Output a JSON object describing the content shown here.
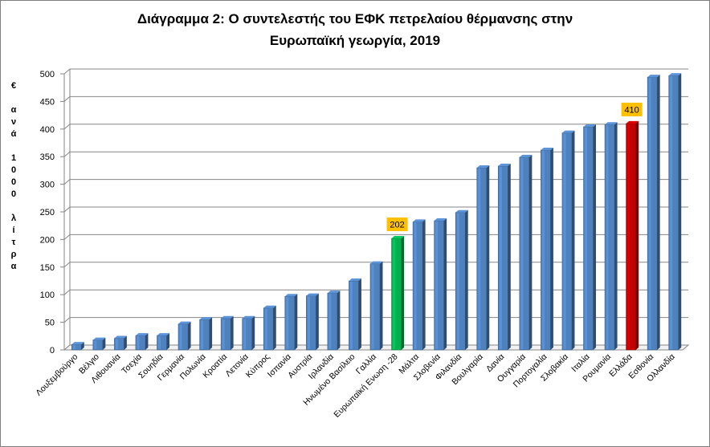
{
  "chart_data": {
    "type": "bar",
    "title": "Διάγραμμα 2: Ο συντελεστής του ΕΦΚ πετρελαίου θέρμανσης στην Ευρωπαϊκή γεωργία, 2019",
    "title_lines": [
      "Διάγραμμα 2: Ο συντελεστής του ΕΦΚ πετρελαίου θέρμανσης στην",
      "Ευρωπαϊκή γεωργία, 2019"
    ],
    "ylabel": "€ ανά 1000 λίτρα",
    "ylabel_lines": [
      "€",
      "",
      "α",
      "ν",
      "ά",
      "",
      "1",
      "0",
      "0",
      "0",
      "",
      "λ",
      "ί",
      "τ",
      "ρ",
      "α"
    ],
    "xlabel": "",
    "ylim": [
      0,
      500
    ],
    "yticks": [
      0,
      50,
      100,
      150,
      200,
      250,
      300,
      350,
      400,
      450,
      500
    ],
    "grid": true,
    "legend": "none",
    "categories": [
      "Λουξεμβούργο",
      "Βέλγιο",
      "Λιθουανία",
      "Τσεχία",
      "Σουηδία",
      "Γερμανία",
      "Πολωνία",
      "Κροατία",
      "Λετονία",
      "Κύπρος",
      "Ισπανία",
      "Αυστρία",
      "Ιρλανδία",
      "Ηνωμένο Βασίλειο",
      "Γαλλία",
      "Ευρωπαϊκή Ενωση -28",
      "Μάλτα",
      "Σλοβενία",
      "Φιλανδία",
      "Βουλγαρία",
      "Δανία",
      "Ουγγαρία",
      "Πορτογαλία",
      "Σλοβακία",
      "Ιταλία",
      "Ρουμανία",
      "Ελλάδα",
      "Εσθονία",
      "Ολλανδία"
    ],
    "values": [
      10,
      18,
      21,
      26,
      26,
      47,
      55,
      57,
      57,
      76,
      97,
      98,
      103,
      125,
      156,
      202,
      232,
      234,
      249,
      330,
      333,
      349,
      362,
      393,
      404,
      408,
      410,
      494,
      497
    ],
    "highlight": [
      {
        "category": "Ευρωπαϊκή Ενωση -28",
        "color": "#00b050",
        "label": "202"
      },
      {
        "category": "Ελλάδα",
        "color": "#c00000",
        "label": "410"
      }
    ],
    "colors": {
      "bar": "#4f81bd",
      "label_box": "#ffc000",
      "grid": "#868686"
    }
  }
}
